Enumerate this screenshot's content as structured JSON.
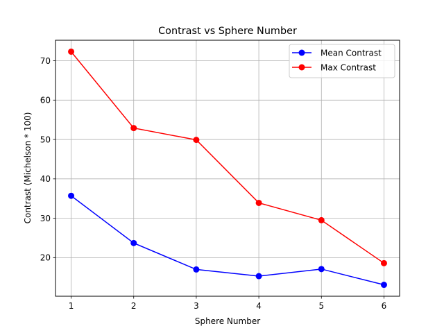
{
  "chart_data": {
    "type": "line",
    "title": "Contrast vs Sphere Number",
    "xlabel": "Sphere Number",
    "ylabel": "Contrast (Michelson * 100)",
    "x": [
      1,
      2,
      3,
      4,
      5,
      6
    ],
    "xticks": [
      "1",
      "2",
      "3",
      "4",
      "5",
      "6"
    ],
    "yticks": [
      "20",
      "30",
      "40",
      "50",
      "60",
      "70"
    ],
    "xlim": [
      0.75,
      6.25
    ],
    "ylim": [
      10.2,
      75.2
    ],
    "grid": true,
    "legend_position": "top-right",
    "series": [
      {
        "name": "Mean Contrast",
        "color": "#0000ff",
        "marker": "circle",
        "values": [
          35.7,
          23.7,
          17.0,
          15.3,
          17.1,
          13.1
        ]
      },
      {
        "name": "Max Contrast",
        "color": "#ff0000",
        "marker": "circle",
        "values": [
          72.3,
          52.9,
          49.9,
          33.9,
          29.5,
          18.6
        ]
      }
    ]
  }
}
